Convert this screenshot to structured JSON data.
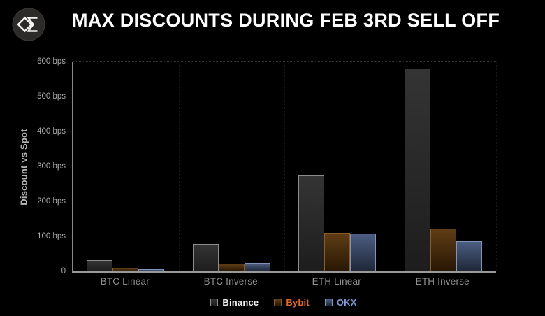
{
  "title": "MAX DISCOUNTS DURING FEB 3RD SELL OFF",
  "logo": {
    "name": "sigma-diamond-logo"
  },
  "colors": {
    "background": "#000000",
    "title_text": "#ffffff",
    "axis_line": "#9a9a9a",
    "tick_text": "#a8a8a8",
    "category_text": "#8f8f8f",
    "gridline": "rgba(255,255,255,0.20)"
  },
  "chart_data": {
    "type": "bar",
    "title": "MAX DISCOUNTS DURING FEB 3RD SELL OFF",
    "xlabel": "",
    "ylabel": "Discount vs Spot",
    "ylim": [
      0,
      600
    ],
    "grid": "dotted horizontal lines at each 100 bps; faint dotted verticals at group boundaries",
    "legend_position": "bottom-center",
    "ytick_values": [
      600,
      500,
      400,
      300,
      200,
      100,
      0
    ],
    "ytick_labels": [
      "600 bps",
      "500 bps",
      "400 bps",
      "300 bps",
      "200 bps",
      "100 bps",
      "0"
    ],
    "categories": [
      "BTC Linear",
      "BTC Inverse",
      "ETH Linear",
      "ETH Inverse"
    ],
    "series": [
      {
        "name": "Binance",
        "values": [
          32,
          78,
          275,
          580
        ],
        "fill_top": "#343434",
        "fill_bottom": "#1d1d1d",
        "border": "#8c8c8c",
        "label_color": "#f2f2f2"
      },
      {
        "name": "Bybit",
        "values": [
          11,
          22,
          111,
          123
        ],
        "fill_top": "#5f3d15",
        "fill_bottom": "#281705",
        "border": "#8a5c26",
        "label_color": "#e5671c"
      },
      {
        "name": "OKX",
        "values": [
          6,
          25,
          109,
          86
        ],
        "fill_top": "#4c5d82",
        "fill_bottom": "#1f2737",
        "border": "#7e94bd",
        "label_color": "#7e9cd9"
      }
    ]
  }
}
